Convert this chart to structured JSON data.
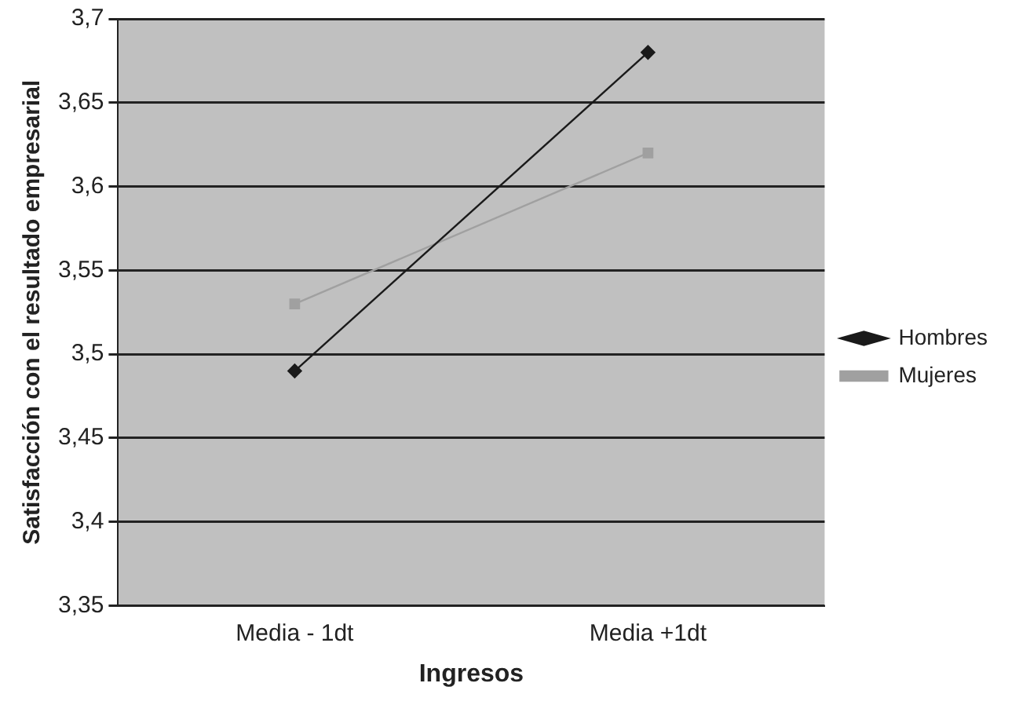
{
  "chart_data": {
    "type": "line",
    "xlabel": "Ingresos",
    "ylabel": "Satisfacción con el resultado empresarial",
    "categories": [
      "Media - 1dt",
      "Media +1dt"
    ],
    "series": [
      {
        "name": "Hombres",
        "color": "#1a1a1a",
        "values": [
          3.49,
          3.68
        ],
        "marker": "diamond"
      },
      {
        "name": "Mujeres",
        "color": "#a0a0a0",
        "values": [
          3.53,
          3.62
        ],
        "marker": "square"
      }
    ],
    "ylim": [
      3.35,
      3.7
    ],
    "yticks": [
      {
        "value": 3.35,
        "label": "3,35"
      },
      {
        "value": 3.4,
        "label": "3,4"
      },
      {
        "value": 3.45,
        "label": "3,45"
      },
      {
        "value": 3.5,
        "label": "3,5"
      },
      {
        "value": 3.55,
        "label": "3,55"
      },
      {
        "value": 3.6,
        "label": "3,6"
      },
      {
        "value": 3.65,
        "label": "3,65"
      },
      {
        "value": 3.7,
        "label": "3,7"
      }
    ],
    "grid": "y",
    "legend": "right",
    "line_style": "solid"
  }
}
